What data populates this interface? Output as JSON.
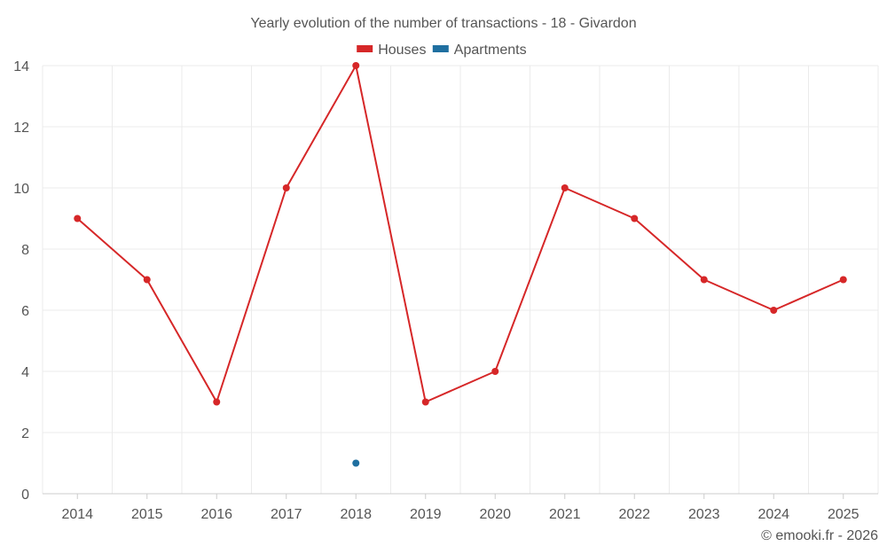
{
  "chart_data": {
    "type": "line",
    "title": "Yearly evolution of the number of transactions - 18 - Givardon",
    "x": [
      "2014",
      "2015",
      "2016",
      "2017",
      "2018",
      "2019",
      "2020",
      "2021",
      "2022",
      "2023",
      "2024",
      "2025"
    ],
    "ylim": [
      0,
      14
    ],
    "yticks": [
      0,
      2,
      4,
      6,
      8,
      10,
      12,
      14
    ],
    "grid": true,
    "legend_position": "top-center",
    "series": [
      {
        "name": "Houses",
        "color": "#d62728",
        "values": [
          9,
          7,
          3,
          10,
          14,
          3,
          4,
          10,
          9,
          7,
          6,
          7
        ]
      },
      {
        "name": "Apartments",
        "color": "#1f6fa0",
        "values": [
          null,
          null,
          null,
          null,
          1,
          null,
          null,
          null,
          null,
          null,
          null,
          null
        ]
      }
    ],
    "xlabel": "",
    "ylabel": ""
  },
  "credit": "© emooki.fr - 2026"
}
